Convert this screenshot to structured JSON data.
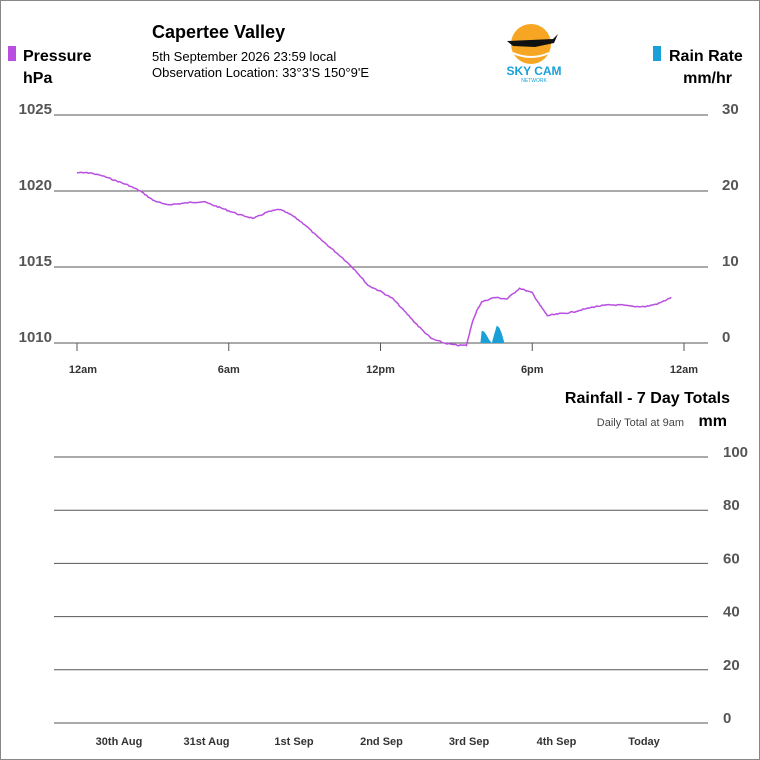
{
  "header": {
    "title": "Capertee Valley",
    "date_line": "5th September 2026  23:59 local",
    "location_line": "Observation Location:   33°3'S 150°9'E"
  },
  "logo": {
    "text": "SKY CAM",
    "subtext": "NETWORK",
    "colors": {
      "sun": "#f6a623",
      "text": "#1aa0d8",
      "plane": "#111111"
    }
  },
  "chart_data": [
    {
      "type": "line",
      "legend_left": {
        "label": "Pressure",
        "unit": "hPa",
        "color": "#b94fe0"
      },
      "legend_right": {
        "label": "Rain Rate",
        "unit": "mm/hr",
        "color": "#1aa0d8"
      },
      "y_left": {
        "ticks": [
          "1025",
          "1020",
          "1015",
          "1010"
        ],
        "lim": [
          1010,
          1025
        ]
      },
      "y_right": {
        "ticks": [
          "30",
          "20",
          "10",
          "0"
        ],
        "lim": [
          0,
          30
        ]
      },
      "x_ticks": [
        "12am",
        "6am",
        "12pm",
        "6pm",
        "12am"
      ],
      "x_range_hours": [
        0,
        24
      ],
      "pressure_series": {
        "name": "Pressure",
        "color": "#b94fe0",
        "points": [
          [
            0.0,
            1021.2
          ],
          [
            0.5,
            1021.2
          ],
          [
            1.0,
            1021.0
          ],
          [
            1.5,
            1020.7
          ],
          [
            2.0,
            1020.4
          ],
          [
            2.5,
            1020.0
          ],
          [
            3.0,
            1019.4
          ],
          [
            3.5,
            1019.1
          ],
          [
            4.0,
            1019.15
          ],
          [
            4.5,
            1019.25
          ],
          [
            5.0,
            1019.3
          ],
          [
            5.5,
            1019.0
          ],
          [
            6.0,
            1018.7
          ],
          [
            6.5,
            1018.4
          ],
          [
            7.0,
            1018.2
          ],
          [
            7.5,
            1018.6
          ],
          [
            8.0,
            1018.8
          ],
          [
            8.5,
            1018.4
          ],
          [
            9.0,
            1017.8
          ],
          [
            9.5,
            1017.0
          ],
          [
            10.0,
            1016.3
          ],
          [
            10.5,
            1015.6
          ],
          [
            11.0,
            1014.8
          ],
          [
            11.5,
            1013.8
          ],
          [
            12.0,
            1013.4
          ],
          [
            12.5,
            1012.9
          ],
          [
            13.0,
            1012.0
          ],
          [
            13.5,
            1011.1
          ],
          [
            14.0,
            1010.3
          ],
          [
            14.5,
            1010.0
          ],
          [
            15.0,
            1009.85
          ],
          [
            15.4,
            1009.85
          ],
          [
            15.6,
            1011.2
          ],
          [
            15.8,
            1012.1
          ],
          [
            16.0,
            1012.7
          ],
          [
            16.5,
            1013.0
          ],
          [
            17.0,
            1012.9
          ],
          [
            17.5,
            1013.6
          ],
          [
            18.0,
            1013.3
          ],
          [
            18.3,
            1012.5
          ],
          [
            18.6,
            1011.8
          ],
          [
            19.0,
            1011.9
          ],
          [
            19.5,
            1012.0
          ],
          [
            20.0,
            1012.2
          ],
          [
            20.5,
            1012.4
          ],
          [
            21.0,
            1012.5
          ],
          [
            21.5,
            1012.5
          ],
          [
            22.0,
            1012.4
          ],
          [
            22.5,
            1012.4
          ],
          [
            23.0,
            1012.6
          ],
          [
            23.5,
            1013.0
          ]
        ]
      },
      "rain_series": {
        "name": "Rain Rate",
        "color": "#1aa0d8",
        "points": [
          [
            15.95,
            0
          ],
          [
            16.0,
            1.6
          ],
          [
            16.1,
            1.5
          ],
          [
            16.2,
            1.0
          ],
          [
            16.3,
            0.4
          ],
          [
            16.4,
            0
          ],
          [
            16.5,
            1.2
          ],
          [
            16.6,
            2.3
          ],
          [
            16.7,
            2.0
          ],
          [
            16.8,
            1.2
          ],
          [
            16.9,
            0
          ]
        ]
      }
    },
    {
      "type": "bar",
      "title": "Rainfall - 7 Day Totals",
      "subtitle": "Daily Total at 9am",
      "unit": "mm",
      "categories": [
        "30th Aug",
        "31st Aug",
        "1st Sep",
        "2nd Sep",
        "3rd Sep",
        "4th Sep",
        "Today"
      ],
      "values": [
        0,
        0,
        0,
        0,
        0,
        0,
        0
      ],
      "y_ticks": [
        "100",
        "80",
        "60",
        "40",
        "20",
        "0"
      ],
      "ylim": [
        0,
        100
      ],
      "color": "#1aa0d8"
    }
  ]
}
